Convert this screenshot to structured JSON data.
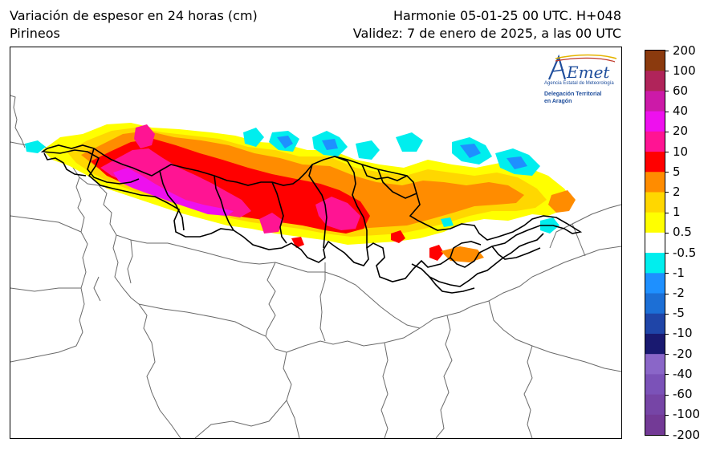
{
  "header": {
    "title_line1": "Variación de espesor en 24 horas (cm)",
    "title_line2": "Pirineos",
    "run_line1": "Harmonie 05-01-25 00 UTC. H+048",
    "run_line2": "Validez: 7 de enero de 2025, a las 00 UTC"
  },
  "logo": {
    "name": "AEMet",
    "subtitle": "Agencia Estatal de Meteorología",
    "org_line1": "Delegación Territorial",
    "org_line2": "en Aragón"
  },
  "colorbar": {
    "levels": [
      {
        "label": "200",
        "color": "#8b3a0e"
      },
      {
        "label": "100",
        "color": "#b0245a"
      },
      {
        "label": "60",
        "color": "#cc1aa8"
      },
      {
        "label": "40",
        "color": "#ee10ee"
      },
      {
        "label": "20",
        "color": "#ff1493"
      },
      {
        "label": "10",
        "color": "#ff0000"
      },
      {
        "label": "5",
        "color": "#ff8c00"
      },
      {
        "label": "2",
        "color": "#ffd700"
      },
      {
        "label": "1",
        "color": "#ffff00"
      },
      {
        "label": "0.5",
        "color": "#ffffff"
      },
      {
        "label": "-0.5",
        "color": "#00eeee"
      },
      {
        "label": "-1",
        "color": "#1e90ff"
      },
      {
        "label": "-2",
        "color": "#1c6fd6"
      },
      {
        "label": "-5",
        "color": "#1f45a8"
      },
      {
        "label": "-10",
        "color": "#191970"
      },
      {
        "label": "-20",
        "color": "#8a66c8"
      },
      {
        "label": "-40",
        "color": "#7b52b8"
      },
      {
        "label": "-60",
        "color": "#7645a6"
      },
      {
        "label": "-100",
        "color": "#733a96"
      },
      {
        "label": "-200",
        "color": "#6f2f86"
      }
    ]
  },
  "map": {
    "region": "Pirineos",
    "boundary_color": "#666666",
    "zone_color": "#000000"
  }
}
